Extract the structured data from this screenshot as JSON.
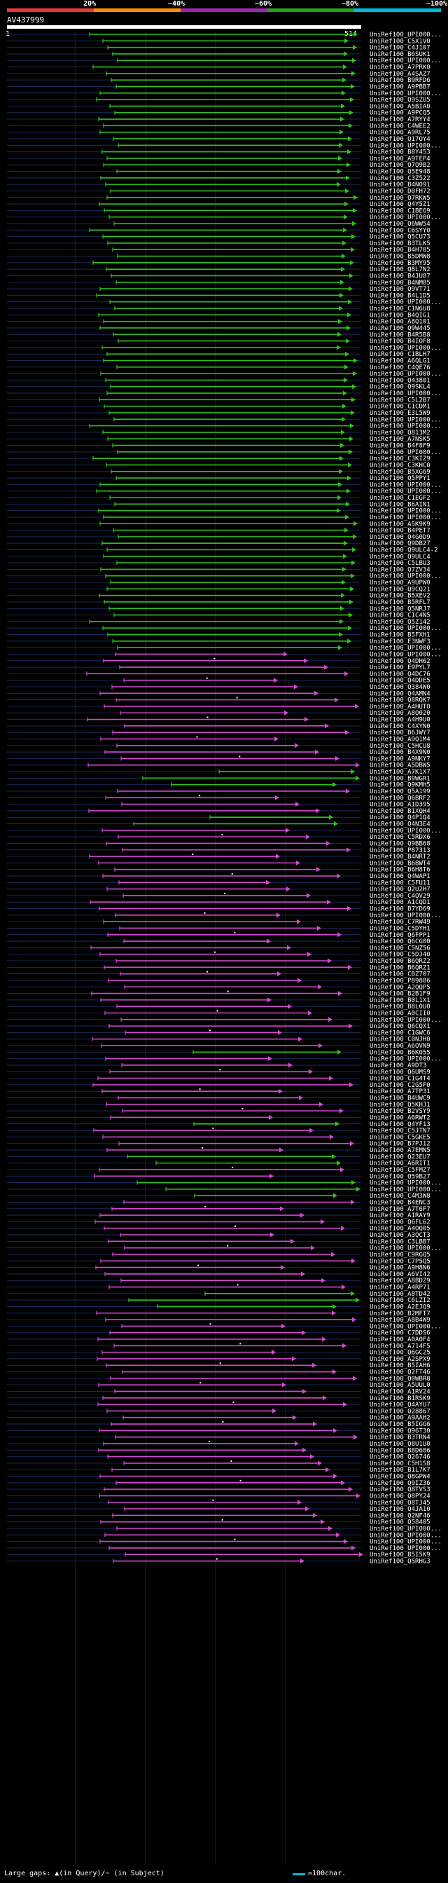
{
  "header": {
    "scale_labels": [
      "20%",
      "~40%",
      "~60%",
      "~80%",
      "~100%"
    ],
    "scale_colors": [
      "#e53935",
      "#ff8f00",
      "#9c27b0",
      "#2e9e1e",
      "#00bcd4"
    ],
    "query_id": "AV437999",
    "query_start": "1",
    "query_end": "514"
  },
  "footer": {
    "gaps_label": "Large gaps: ▲(in Query)/~ (in Subject)",
    "scale_label": "=100char."
  },
  "colors": {
    "green": "#2fc21c",
    "magenta": "#d548d5",
    "white": "#ffffff",
    "gridline": "#1a2a5a"
  },
  "chart_data": {
    "type": "alignment-overview",
    "query_length": 514,
    "xlim": [
      1,
      514
    ],
    "labels": [
      "UniRef100_UPI000...",
      "UniRef100_C5X1V0",
      "UniRef100_C4J107",
      "UniRef100_B6SUK1",
      "UniRef100_UPI000...",
      "UniRef100_A7PRK0",
      "UniRef100_A4SAZ7",
      "UniRef100_B9RFD6",
      "UniRef100_A9PBB7",
      "UniRef100_UPI000...",
      "UniRef100_Q9SZU5",
      "UniRef100_A5BIA0",
      "UniRef100_A9PCQ5",
      "UniRef100_A7RYY4",
      "UniRef100_C4WEE2",
      "UniRef100_A9RL75",
      "UniRef100_Q17OY4",
      "UniRef100_UPI000...",
      "UniRef100_B8Y453",
      "UniRef100_A9TEP4",
      "UniRef100_Q7Q9B2",
      "UniRef100_Q5E948",
      "UniRef100_C3Z522",
      "UniRef100_B4N091",
      "UniRef100_D0FH72",
      "UniRef100_Q7RKW5",
      "UniRef100_Q4Y5Z1",
      "UniRef100_C1BE69",
      "UniRef100_UPI000...",
      "UniRef100_Q6WW54",
      "UniRef100_C6SYY0",
      "UniRef100_Q5CU73",
      "UniRef100_B3TLK5",
      "UniRef100_B4H785",
      "UniRef100_B5DMW8",
      "UniRef100_B3MY95",
      "UniRef100_Q8L7N2",
      "UniRef100_B4JU87",
      "UniRef100_B4NM85",
      "UniRef100_Q9VT71",
      "UniRef100_B4L1D5",
      "UniRef100_UPI000...",
      "UniRef100_C1N6U8",
      "UniRef100_B4QIG1",
      "UniRef100_A8Q101",
      "UniRef100_Q9W445",
      "UniRef100_B4R5B8",
      "UniRef100_B4IOF8",
      "UniRef100_UPI000...",
      "UniRef100_C1BLH7",
      "UniRef100_A6QLG1",
      "UniRef100_C4QE76",
      "UniRef100_UPI000...",
      "UniRef100_Q43801",
      "UniRef100_Q9SKL4",
      "UniRef100_UPI000...",
      "UniRef100_C5L2B7",
      "UniRef100_C1CDM1",
      "UniRef100_E3L5W9",
      "UniRef100_UPI000...",
      "UniRef100_UPI000...",
      "UniRef100_Q813M2",
      "UniRef100_A7NSK5",
      "UniRef100_B4F8F9",
      "UniRef100_UPI000...",
      "UniRef100_C3KIZ9",
      "UniRef100_C3KHC0",
      "UniRef100_B5XG69",
      "UniRef100_Q5PPY1",
      "UniRef100_UPI000...",
      "UniRef100_UPI000...",
      "UniRef100_C1EGF2",
      "UniRef100_B6AIN1",
      "UniRef100_UPI000...",
      "UniRef100_UPI000...",
      "UniRef100_A5K9K9",
      "UniRef100_B4PET7",
      "UniRef100_Q4G0D9",
      "UniRef100_Q9DB27",
      "UniRef100_Q9ULC4-2",
      "UniRef100_Q9ULC4",
      "UniRef100_C5LBU3",
      "UniRef100_Q7ZV34",
      "UniRef100_UPI000...",
      "UniRef100_A9UPW0",
      "UniRef100_Q9CQ21",
      "UniRef100_B5XEV2",
      "UniRef100_B5RFL7",
      "UniRef100_Q5NRJ7",
      "UniRef100_C1C4N5",
      "UniRef100_Q5Z142",
      "UniRef100_UPI000...",
      "UniRef100_B5FXH1",
      "UniRef100_E3NWF3",
      "UniRef100_UPI000...",
      "UniRef100_UPI000...",
      "UniRef100_Q4DH62",
      "UniRef100_E9PYL7",
      "UniRef100_Q4DC76",
      "UniRef100_Q4DDE5",
      "UniRef100_Q384W0",
      "UniRef100_Q4AMN4",
      "UniRef100_Q8RQK7",
      "UniRef100_A4HUTO",
      "UniRef100_A8Q020",
      "UniRef100_A4H9U0",
      "UniRef100_C4XYN0",
      "UniRef100_B6JWY7",
      "UniRef100_A9Q1M4",
      "UniRef100_C5HCU8",
      "UniRef100_B4X9N0",
      "UniRef100_A9NKY7",
      "UniRef100_A5DBW5",
      "UniRef100_A7K1X7",
      "UniRef100_B9WGR1",
      "UniRef100_Q9KMH5",
      "UniRef100_Q5A199",
      "UniRef100_Q6BRF2",
      "UniRef100_A1D395",
      "UniRef100_B1XQH4",
      "UniRef100_Q4P1Q4",
      "UniRef100_Q4N3E4",
      "UniRef100_UPI000...",
      "UniRef100_C5RDX6",
      "UniRef100_Q9BB68",
      "UniRef100_P87313",
      "UniRef100_B4NRT2",
      "UniRef100_B6BWT4",
      "UniRef100_B6H8T6",
      "UniRef100_Q4WAP1",
      "UniRef100_C5FU11",
      "UniRef100_Q2U2H7",
      "UniRef100_C4QV29",
      "UniRef100_A1CQD1",
      "UniRef100_B7YD69",
      "UniRef100_UPI000...",
      "UniRef100_C7RW49",
      "UniRef100_C5DYH1",
      "UniRef100_Q6FPP1",
      "UniRef100_Q6CG00",
      "UniRef100_C5NZ56",
      "UniRef100_C5DJ40",
      "UniRef100_B6QRZ2",
      "UniRef100_B6QRZ1",
      "UniRef100_C8Z707",
      "UniRef100_P89886",
      "UniRef100_A2QQP5",
      "UniRef100_B2B1F9",
      "UniRef100_B0L1X1",
      "UniRef100_B8L0U0",
      "UniRef100_A0CII0",
      "UniRef100_UPI000...",
      "UniRef100_Q6CQX1",
      "UniRef100_C1GWC6",
      "UniRef100_C0NJH0",
      "UniRef100_A6QVN9",
      "UniRef100_B6K055",
      "UniRef100_UPI000...",
      "UniRef100_A9DT3",
      "UniRef100_Q6UMS9",
      "UniRef100_C1G4T4",
      "UniRef100_C2G5F0",
      "UniRef100_A7TP31",
      "UniRef100_B4UWC9",
      "UniRef100_Q5KHJ1",
      "UniRef100_B2VSY9",
      "UniRef100_A6RWT2",
      "UniRef100_Q4YF13",
      "UniRef100_C5JTN7",
      "UniRef100_C5GKE5",
      "UniRef100_B7PJ12",
      "UniRef100_A7EMN5",
      "UniRef100_Q23EU7",
      "UniRef100_A6RIT1",
      "UniRef100_C5FMZ7",
      "UniRef100_Q59B27",
      "UniRef100_UPI000...",
      "UniRef100_UPI000...",
      "UniRef100_C4M3W8",
      "UniRef100_B4ENC3",
      "UniRef100_A7T6F7",
      "UniRef100_A1RAY9",
      "UniRef100_Q6FL62",
      "UniRef100_A4OQ05",
      "UniRef100_A3QCT3",
      "UniRef100_C3LBB7",
      "UniRef100_UPI000...",
      "UniRef100_C9RGQ5",
      "UniRef100_C7P5Q5",
      "UniRef100_A9H8N6",
      "UniRef100_A6VI42",
      "UniRef100_A8BDZ9",
      "UniRef100_A4RP71",
      "UniRef100_A8TD42",
      "UniRef100_C6LZI2",
      "UniRef100_A2EJQ9",
      "UniRef100_B2MFT7",
      "UniRef100_A8B4W9",
      "UniRef100_UPI000...",
      "UniRef100_C7DDS6",
      "UniRef100_A0A0F4",
      "UniRef100_A714F5",
      "UniRef100_Q6GC25",
      "UniRef100_A2SPX9",
      "UniRef100_B5IAH6",
      "UniRef100_Q2FT46",
      "UniRef100_Q0WBR8",
      "UniRef100_A5UUL0",
      "UniRef100_A1RV24",
      "UniRef100_B1RSK9",
      "UniRef100_Q4AYU7",
      "UniRef100_Q28867",
      "UniRef100_A9AAH2",
      "UniRef100_B5IGG6",
      "UniRef100_Q96T30",
      "UniRef100_B3TRN4",
      "UniRef100_Q8U1U0",
      "UniRef100_B8D686",
      "UniRef100_Q26746",
      "UniRef100_C5H1S8",
      "UniRef100_B1L7K7",
      "UniRef100_Q8GPW4",
      "UniRef100_Q9IZ36",
      "UniRef100_Q8TVS3",
      "UniRef100_Q8PY24",
      "UniRef100_Q8TJ45",
      "UniRef100_Q4JA10",
      "UniRef100_Q2NF46",
      "UniRef100_Q58405",
      "UniRef100_UPI000...",
      "UniRef100_UPI000...",
      "UniRef100_UPI000...",
      "UniRef100_UPI000...",
      "UniRef100_B5I5K9",
      "UniRef100_Q5RHG3"
    ]
  }
}
